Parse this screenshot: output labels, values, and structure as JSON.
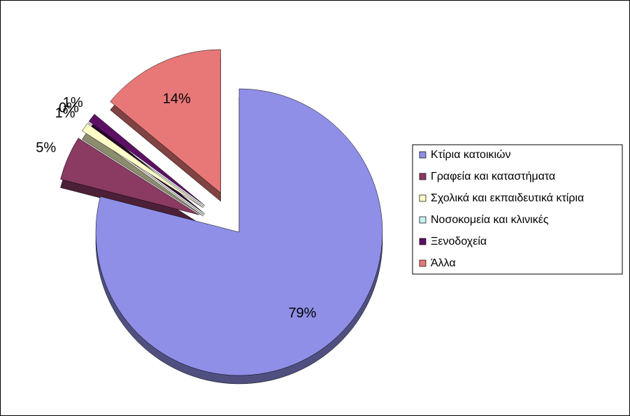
{
  "chart_data": {
    "type": "pie",
    "categories": [
      "Κτίρια κατοικιών",
      "Γραφεία και καταστήματα",
      "Σχολικά και εκπαιδευτικά κτίρια",
      "Νοσοκομεία και κλινικές",
      "Ξενοδοχεία",
      "Άλλα"
    ],
    "values": [
      79,
      5,
      1,
      0,
      1,
      14
    ],
    "value_labels": [
      "79%",
      "5%",
      "1%",
      "0%",
      "1%",
      "14%"
    ],
    "colors": [
      "#8f8fe8",
      "#8b3a62",
      "#ffffc8",
      "#c8f0f0",
      "#5c1064",
      "#e87878"
    ],
    "legend": "right"
  }
}
